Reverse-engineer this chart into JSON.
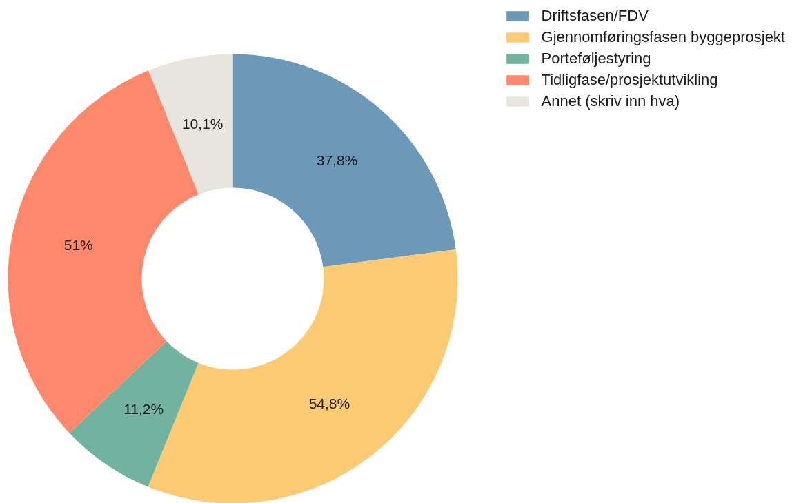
{
  "chart_data": {
    "type": "donut",
    "categories": [
      "Driftsfasen/FDV",
      "Gjennomføringsfasen byggeprosjekt",
      "Porteføljestyring",
      "Tidligfase/prosjektutvikling",
      "Annet (skriv inn hva)"
    ],
    "values": [
      37.8,
      54.8,
      11.2,
      51,
      10.1
    ],
    "colors": [
      "#6d99b8",
      "#fdca74",
      "#72b3a0",
      "#fd886b",
      "#e8e5de"
    ],
    "value_labels": [
      "37,8%",
      "54,8%",
      "11,2%",
      "51%",
      "10,1%"
    ],
    "legend": "top right"
  }
}
